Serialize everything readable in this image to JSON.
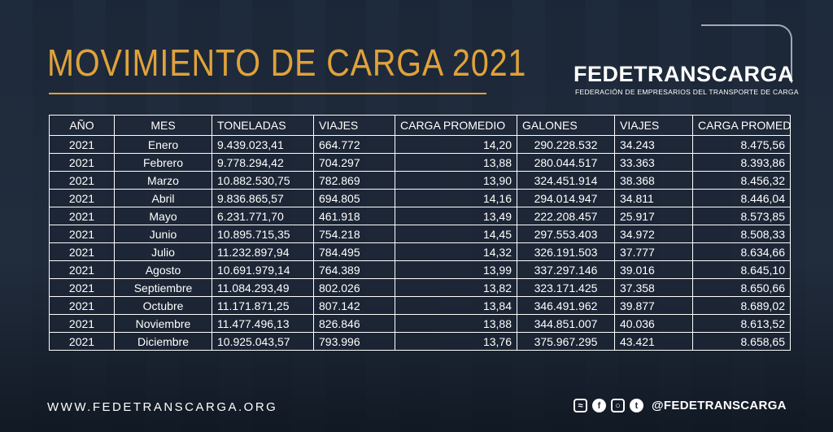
{
  "title": "MOVIMIENTO DE CARGA 2021",
  "brand": {
    "name": "FEDETRANSCARGA",
    "subtitle": "FEDERACIÓN DE EMPRESARIOS DEL TRANSPORTE DE CARGA"
  },
  "table": {
    "headers": [
      "AÑO",
      "MES",
      "TONELADAS",
      "VIAJES",
      "CARGA PROMEDIO",
      "GALONES",
      "VIAJES",
      "CARGA PROMEDIO"
    ],
    "rows": [
      [
        "2021",
        "Enero",
        "9.439.023,41",
        "664.772",
        "14,20",
        "290.228.532",
        "34.243",
        "8.475,56"
      ],
      [
        "2021",
        "Febrero",
        "9.778.294,42",
        "704.297",
        "13,88",
        "280.044.517",
        "33.363",
        "8.393,86"
      ],
      [
        "2021",
        "Marzo",
        "10.882.530,75",
        "782.869",
        "13,90",
        "324.451.914",
        "38.368",
        "8.456,32"
      ],
      [
        "2021",
        "Abril",
        "9.836.865,57",
        "694.805",
        "14,16",
        "294.014.947",
        "34.811",
        "8.446,04"
      ],
      [
        "2021",
        "Mayo",
        "6.231.771,70",
        "461.918",
        "13,49",
        "222.208.457",
        "25.917",
        "8.573,85"
      ],
      [
        "2021",
        "Junio",
        "10.895.715,35",
        "754.218",
        "14,45",
        "297.553.403",
        "34.972",
        "8.508,33"
      ],
      [
        "2021",
        "Julio",
        "11.232.897,94",
        "784.495",
        "14,32",
        "326.191.503",
        "37.777",
        "8.634,66"
      ],
      [
        "2021",
        "Agosto",
        "10.691.979,14",
        "764.389",
        "13,99",
        "337.297.146",
        "39.016",
        "8.645,10"
      ],
      [
        "2021",
        "Septiembre",
        "11.084.293,49",
        "802.026",
        "13,82",
        "323.171.425",
        "37.358",
        "8.650,66"
      ],
      [
        "2021",
        "Octubre",
        "11.171.871,25",
        "807.142",
        "13,84",
        "346.491.962",
        "39.877",
        "8.689,02"
      ],
      [
        "2021",
        "Noviembre",
        "11.477.496,13",
        "826.846",
        "13,88",
        "344.851.007",
        "40.036",
        "8.613,52"
      ],
      [
        "2021",
        "Diciembre",
        "10.925.043,57",
        "793.996",
        "13,76",
        "375.967.295",
        "43.421",
        "8.658,65"
      ]
    ]
  },
  "footer": {
    "url": "WWW.FEDETRANSCARGA.ORG",
    "handle": "@FEDETRANSCARGA",
    "icons": [
      "rss-icon",
      "facebook-icon",
      "instagram-icon",
      "twitter-icon"
    ]
  }
}
